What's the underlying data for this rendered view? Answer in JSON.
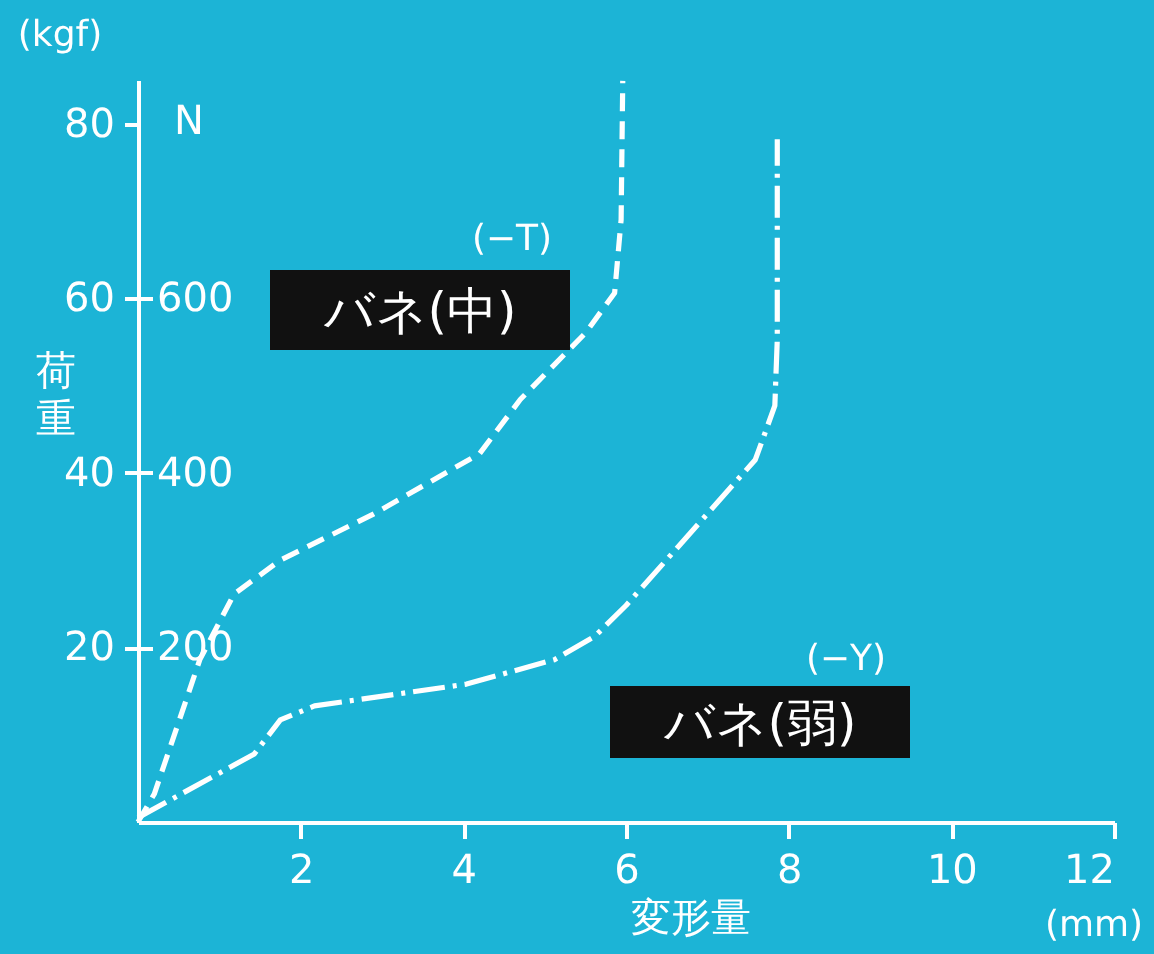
{
  "chart_data": {
    "type": "line",
    "xlabel": "変形量",
    "ylabel": "荷重",
    "y2label": "N",
    "annotations": [
      "(kgf)",
      "(mm)",
      "(−T)",
      "(−Y)"
    ],
    "xlim": [
      0,
      12
    ],
    "xticks": [
      2,
      4,
      6,
      8,
      10,
      12
    ],
    "ylim": [
      0,
      85
    ],
    "yticks": [
      20,
      40,
      60,
      80
    ],
    "y2lim": [
      0,
      850
    ],
    "y2ticks": [
      200,
      400,
      600
    ],
    "grid": false,
    "legend": false,
    "marker": "none",
    "series": [
      {
        "name": "バネ(中)",
        "color": "#ffffff",
        "line_style": "dashed",
        "x": [
          0,
          0.2,
          0.76,
          1.18,
          1.75,
          2.9,
          4.2,
          4.7,
          5.5,
          5.86,
          5.94,
          5.96
        ],
        "values": [
          0,
          3.2,
          18.6,
          26.1,
          30,
          35.3,
          42.2,
          48.4,
          56,
          60.6,
          69,
          84.9
        ]
      },
      {
        "name": "バネ(弱)",
        "color": "#ffffff",
        "line_style": "dashdot",
        "x": [
          0,
          1.43,
          1.75,
          2.17,
          4.04,
          5.12,
          5.62,
          6,
          7.59,
          7.83,
          7.86,
          7.86
        ],
        "values": [
          0.5,
          7.8,
          11.7,
          13.3,
          15.8,
          18.6,
          21.3,
          24.8,
          41.5,
          47.7,
          55.3,
          78.2
        ]
      }
    ]
  }
}
